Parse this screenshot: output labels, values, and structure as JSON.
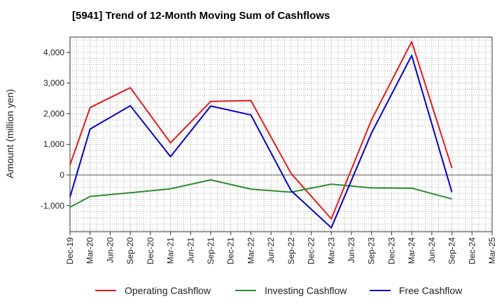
{
  "chart_data": {
    "type": "line",
    "title": "[5941]  Trend of 12-Month Moving Sum of Cashflows",
    "ylabel": "Amount (million yen)",
    "xlabel": "",
    "x": [
      "Dec-19",
      "Mar-20",
      "Jun-20",
      "Sep-20",
      "Dec-20",
      "Mar-21",
      "Jun-21",
      "Sep-21",
      "Dec-21",
      "Mar-22",
      "Jun-22",
      "Sep-22",
      "Dec-22",
      "Mar-23",
      "Jun-23",
      "Sep-23",
      "Dec-23",
      "Mar-24",
      "Jun-24",
      "Sep-24",
      "Dec-24",
      "Mar-25"
    ],
    "ylim": [
      -1850,
      4500
    ],
    "yticks": [
      -1000,
      0,
      1000,
      2000,
      3000,
      4000
    ],
    "ytick_labels": [
      "-1,000",
      "0",
      "1,000",
      "2,000",
      "3,000",
      "4,000"
    ],
    "grid": true,
    "legend_position": "bottom",
    "series": [
      {
        "name": "Operating Cashflow",
        "color": "#e41a1c",
        "values": [
          330,
          2200,
          null,
          2850,
          null,
          1050,
          null,
          2400,
          null,
          2430,
          null,
          50,
          null,
          -1430,
          null,
          1800,
          null,
          4350,
          null,
          230,
          null,
          null
        ]
      },
      {
        "name": "Investing Cashflow",
        "color": "#2e8b2e",
        "values": [
          -1050,
          -700,
          null,
          -580,
          null,
          -450,
          null,
          -160,
          null,
          -460,
          null,
          -560,
          null,
          -300,
          null,
          -420,
          null,
          -430,
          null,
          -780,
          null,
          null
        ]
      },
      {
        "name": "Free Cashflow",
        "color": "#0000cc",
        "values": [
          -720,
          1500,
          null,
          2260,
          null,
          600,
          null,
          2250,
          null,
          1960,
          null,
          -510,
          null,
          -1720,
          null,
          1370,
          null,
          3900,
          null,
          -560,
          null,
          null
        ]
      }
    ]
  }
}
